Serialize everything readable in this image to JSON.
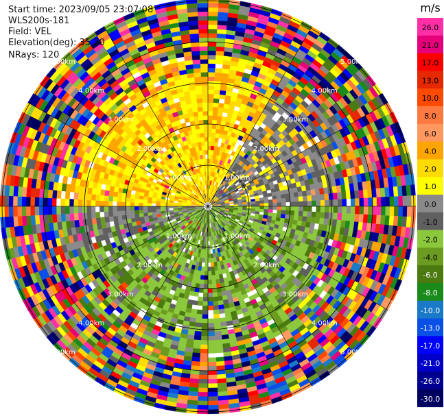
{
  "info": {
    "start_time": "Start time: 2023/09/05 23:07:08",
    "instrument": "WLS200s-181",
    "field": "Field: VEL",
    "elevation": "Elevation(deg): 35.30",
    "nrays": "NRays: 120"
  },
  "colorbar": {
    "unit": "m/s",
    "ticks": [
      "26.0",
      "21.0",
      "17.0",
      "13.0",
      "10.0",
      "8.0",
      "6.0",
      "4.0",
      "2.0",
      "1.0",
      "0.0",
      "-1.0",
      "-2.0",
      "-4.0",
      "-6.0",
      "-8.0",
      "-10.0",
      "-13.0",
      "-17.0",
      "-21.0",
      "-26.0",
      "-30.0"
    ],
    "colors": [
      "#ff2fa6",
      "#e6007a",
      "#ff0000",
      "#e62800",
      "#ff4a00",
      "#ff7a40",
      "#ff9960",
      "#ffa500",
      "#ffdb00",
      "#ffff00",
      "#8a8a8a",
      "#606060",
      "#8cc83c",
      "#6b9b20",
      "#4a7a10",
      "#1a8a1a",
      "#1a7ac8",
      "#0a50e6",
      "#0000ff",
      "#0000c8",
      "#000090",
      "#000060"
    ]
  },
  "chart_data": {
    "type": "heatmap",
    "projection": "polar PPI",
    "field": "VEL",
    "unit": "m/s",
    "range_rings_km": [
      1.0,
      2.0,
      3.0,
      4.0,
      5.0
    ],
    "range_ring_labels": [
      "1.00km",
      "2.00km",
      "3.00km",
      "4.00km",
      "5.00km"
    ],
    "azimuth_lines_deg": [
      0,
      30,
      60,
      90,
      120,
      150,
      180,
      210,
      240,
      270,
      300,
      330
    ],
    "nrays": 120,
    "vmin": -30.0,
    "vmax": 26.0,
    "pattern": {
      "north_half_near": "positive velocities ~1 to 4 m/s (yellow) with grey patches to the east",
      "south_half_near": "negative velocities ~-1 to -4 m/s (olive green)",
      "beyond_3km": "noise across full colour range"
    }
  }
}
